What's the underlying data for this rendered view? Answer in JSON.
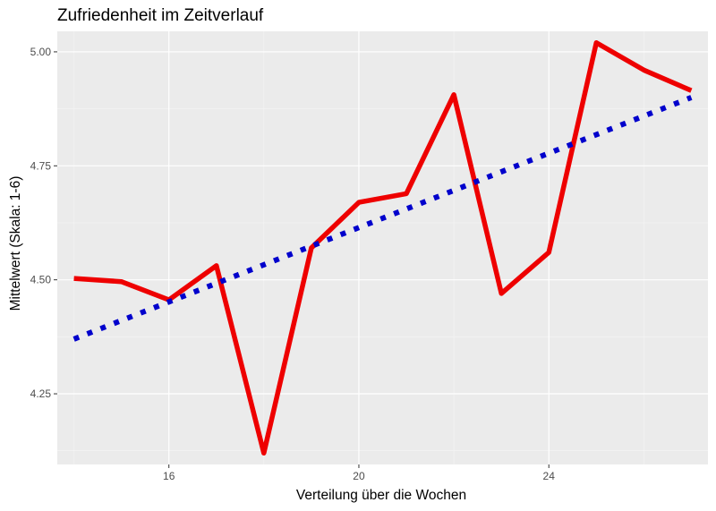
{
  "chart_data": {
    "type": "line",
    "title": "Zufriedenheit im Zeitverlauf",
    "xlabel": "Verteilung über die Wochen",
    "ylabel": "Mittelwert (Skala: 1-6)",
    "xlim": [
      13.65,
      27.35
    ],
    "ylim": [
      4.095,
      5.045
    ],
    "x_ticks": [
      16,
      20,
      24
    ],
    "y_ticks": [
      4.25,
      4.5,
      4.75,
      5.0
    ],
    "x_tick_labels": [
      "16",
      "20",
      "24"
    ],
    "y_tick_labels": [
      "4.25",
      "4.50",
      "4.75",
      "5.00"
    ],
    "grid": true,
    "legend": "none",
    "series": [
      {
        "style": "solid",
        "color": "#ee0000",
        "x": [
          14,
          15,
          16,
          17,
          18,
          19,
          20,
          21,
          22,
          23,
          24,
          25,
          26,
          27
        ],
        "y": [
          4.503,
          4.496,
          4.456,
          4.531,
          4.12,
          4.57,
          4.67,
          4.689,
          4.906,
          4.47,
          4.56,
          5.02,
          4.96,
          4.915
        ]
      },
      {
        "style": "dotted",
        "color": "#0000cc",
        "x": [
          14,
          27
        ],
        "y": [
          4.37,
          4.9
        ]
      }
    ]
  },
  "colors": {
    "panel_background": "#ebebeb",
    "grid_major": "#ffffff",
    "grid_minor": "#f5f5f5"
  }
}
